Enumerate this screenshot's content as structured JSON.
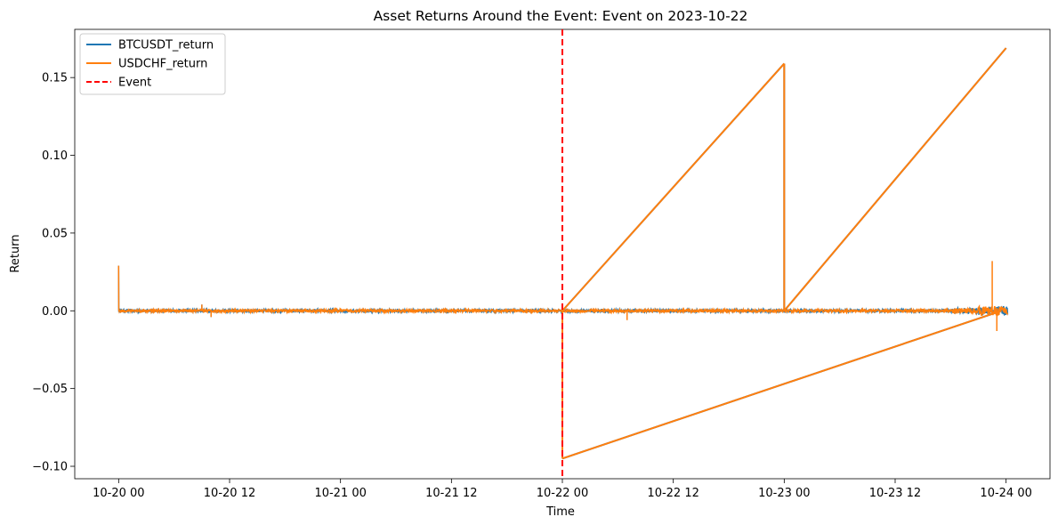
{
  "chart_data": {
    "type": "line",
    "title": "Asset Returns Around the Event: Event on 2023-10-22",
    "xlabel": "Time",
    "ylabel": "Return",
    "xlim": [
      "2023-10-19T19:15",
      "2023-10-24T04:45"
    ],
    "ylim": [
      -0.108,
      0.181
    ],
    "x_ticks": [
      {
        "t": "2023-10-20T00:00",
        "label": "10-20 00"
      },
      {
        "t": "2023-10-20T12:00",
        "label": "10-20 12"
      },
      {
        "t": "2023-10-21T00:00",
        "label": "10-21 00"
      },
      {
        "t": "2023-10-21T12:00",
        "label": "10-21 12"
      },
      {
        "t": "2023-10-22T00:00",
        "label": "10-22 00"
      },
      {
        "t": "2023-10-22T12:00",
        "label": "10-22 12"
      },
      {
        "t": "2023-10-23T00:00",
        "label": "10-23 00"
      },
      {
        "t": "2023-10-23T12:00",
        "label": "10-23 12"
      },
      {
        "t": "2023-10-24T00:00",
        "label": "10-24 00"
      }
    ],
    "y_ticks": [
      {
        "v": -0.1,
        "label": "−0.10"
      },
      {
        "v": -0.05,
        "label": "−0.05"
      },
      {
        "v": 0.0,
        "label": "0.00"
      },
      {
        "v": 0.05,
        "label": "0.05"
      },
      {
        "v": 0.1,
        "label": "0.10"
      },
      {
        "v": 0.15,
        "label": "0.15"
      }
    ],
    "event": {
      "t": "2023-10-22T00:00",
      "label": "Event",
      "color": "#ff0000",
      "style": "dashed"
    },
    "legend_position": "top-left",
    "grid": false,
    "series": [
      {
        "name": "BTCUSDT_return",
        "color": "#1f77b4",
        "points": [
          [
            "2023-10-20T00:00",
            0.029
          ],
          [
            "2023-10-20T00:01",
            0.0005
          ],
          [
            "2023-10-20T03:00",
            0.002
          ],
          [
            "2023-10-20T06:00",
            -0.001
          ],
          [
            "2023-10-20T09:00",
            0.004
          ],
          [
            "2023-10-20T10:00",
            -0.004
          ],
          [
            "2023-10-20T12:00",
            0.001
          ],
          [
            "2023-10-20T18:00",
            -0.001
          ],
          [
            "2023-10-21T00:00",
            0.002
          ],
          [
            "2023-10-21T12:00",
            0.001
          ],
          [
            "2023-10-21T18:00",
            0.002
          ],
          [
            "2023-10-22T00:00",
            0.0
          ],
          [
            "2023-10-22T00:00",
            -0.095
          ],
          [
            "2023-10-23T23:30",
            0.0
          ],
          [
            "2023-10-22T00:00",
            0.0
          ],
          [
            "2023-10-23T00:00",
            0.159
          ],
          [
            "2023-10-23T00:00",
            0.0
          ],
          [
            "2023-10-24T00:00",
            0.169
          ]
        ]
      },
      {
        "name": "USDCHF_return",
        "color": "#ff7f0e",
        "points": [
          [
            "2023-10-20T00:00",
            0.029
          ],
          [
            "2023-10-20T00:01",
            0.0005
          ],
          [
            "2023-10-20T03:00",
            0.002
          ],
          [
            "2023-10-20T06:00",
            -0.001
          ],
          [
            "2023-10-20T09:00",
            0.004
          ],
          [
            "2023-10-20T10:00",
            -0.004
          ],
          [
            "2023-10-20T12:00",
            0.001
          ],
          [
            "2023-10-20T18:00",
            -0.001
          ],
          [
            "2023-10-21T00:00",
            0.002
          ],
          [
            "2023-10-21T12:00",
            0.001
          ],
          [
            "2023-10-21T18:00",
            0.002
          ],
          [
            "2023-10-22T00:00",
            0.0
          ],
          [
            "2023-10-22T00:00",
            -0.095
          ],
          [
            "2023-10-23T23:30",
            0.0
          ],
          [
            "2023-10-22T00:00",
            0.0
          ],
          [
            "2023-10-23T00:00",
            0.159
          ],
          [
            "2023-10-23T00:00",
            0.0
          ],
          [
            "2023-10-24T00:00",
            0.169
          ],
          [
            "2023-10-22T07:00",
            -0.006
          ],
          [
            "2023-10-23T22:30",
            0.032
          ],
          [
            "2023-10-23T23:00",
            -0.013
          ]
        ]
      }
    ],
    "legend": [
      {
        "label": "BTCUSDT_return",
        "color": "#1f77b4",
        "style": "solid"
      },
      {
        "label": "USDCHF_return",
        "color": "#ff7f0e",
        "style": "solid"
      },
      {
        "label": "Event",
        "color": "#ff0000",
        "style": "dashed"
      }
    ]
  }
}
